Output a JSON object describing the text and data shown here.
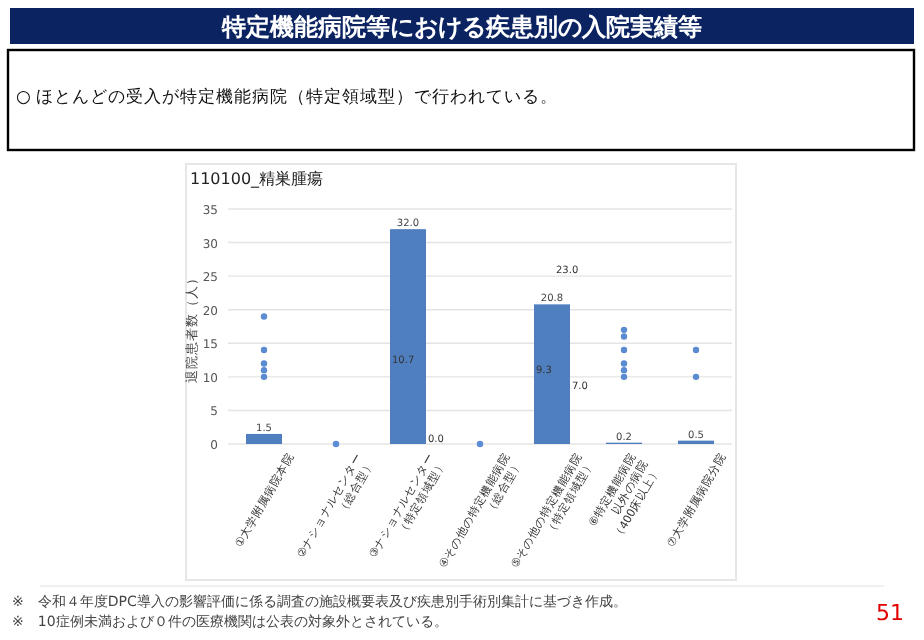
{
  "chart_data": {
    "type": "bar",
    "title": "110100_精巣腫瘍",
    "subtitle": "特定機能病院等における疾患別の入院実績等",
    "ylabel": "退院患者数（人）",
    "categories": [
      "①大学附属病院本院",
      "②ナショナルセンター\n（総合型）",
      "③ナショナルセンター\n（特定領域型）",
      "④その他の特定機能病院\n（総合型）",
      "⑤その他の特定機能病院\n（特定領域型）",
      "⑥特定機能病院\n以外の病院\n（400床以上）",
      "⑦大学附属病院分院"
    ],
    "series": [
      {
        "type": "bar",
        "color": "#4f7fbf",
        "values": [
          1.5,
          0,
          32.0,
          0,
          20.8,
          0.2,
          0.5
        ],
        "value_labels": [
          "1.5",
          null,
          "32.0",
          null,
          "20.8",
          "0.2",
          "0.5"
        ]
      },
      {
        "type": "scatter",
        "color": "#5b8bd0",
        "x": [
          "①大学附属病院本院",
          "①大学附属病院本院",
          "①大学附属病院本院",
          "①大学附属病院本院",
          "①大学附属病院本院",
          "②ナショナルセンター\n（総合型）",
          "④その他の特定機能病院\n（総合型）",
          "⑥特定機能病院\n以外の病院\n（400床以上）",
          "⑥特定機能病院\n以外の病院\n（400床以上）",
          "⑥特定機能病院\n以外の病院\n（400床以上）",
          "⑥特定機能病院\n以外の病院\n（400床以上）",
          "⑥特定機能病院\n以外の病院\n（400床以上）",
          "⑥特定機能病院\n以外の病院\n（400床以上）",
          "⑦大学附属病院分院",
          "⑦大学附属病院分院"
        ],
        "values": [
          19,
          14,
          12,
          11,
          10,
          0,
          0,
          17,
          16,
          14,
          12,
          11,
          10,
          14,
          10
        ]
      }
    ],
    "ylim": [
      0,
      35
    ],
    "yticks": [
      0,
      5,
      10,
      15,
      20,
      25,
      30,
      35
    ],
    "grid": "y",
    "annotations": [
      "○ ほとんどの受入が特定機能病院（特定領域型）で行われている。",
      "23.0",
      "10.7",
      "0.0",
      "9.3",
      "7.0",
      "※　令和４年度DPC導入の影響評価に係る調査の施設概要表及び疾患別手術別集計に基づき作成。",
      "※　10症例未満および０件の医療機関は公表の対象外とされている。",
      "51"
    ]
  }
}
